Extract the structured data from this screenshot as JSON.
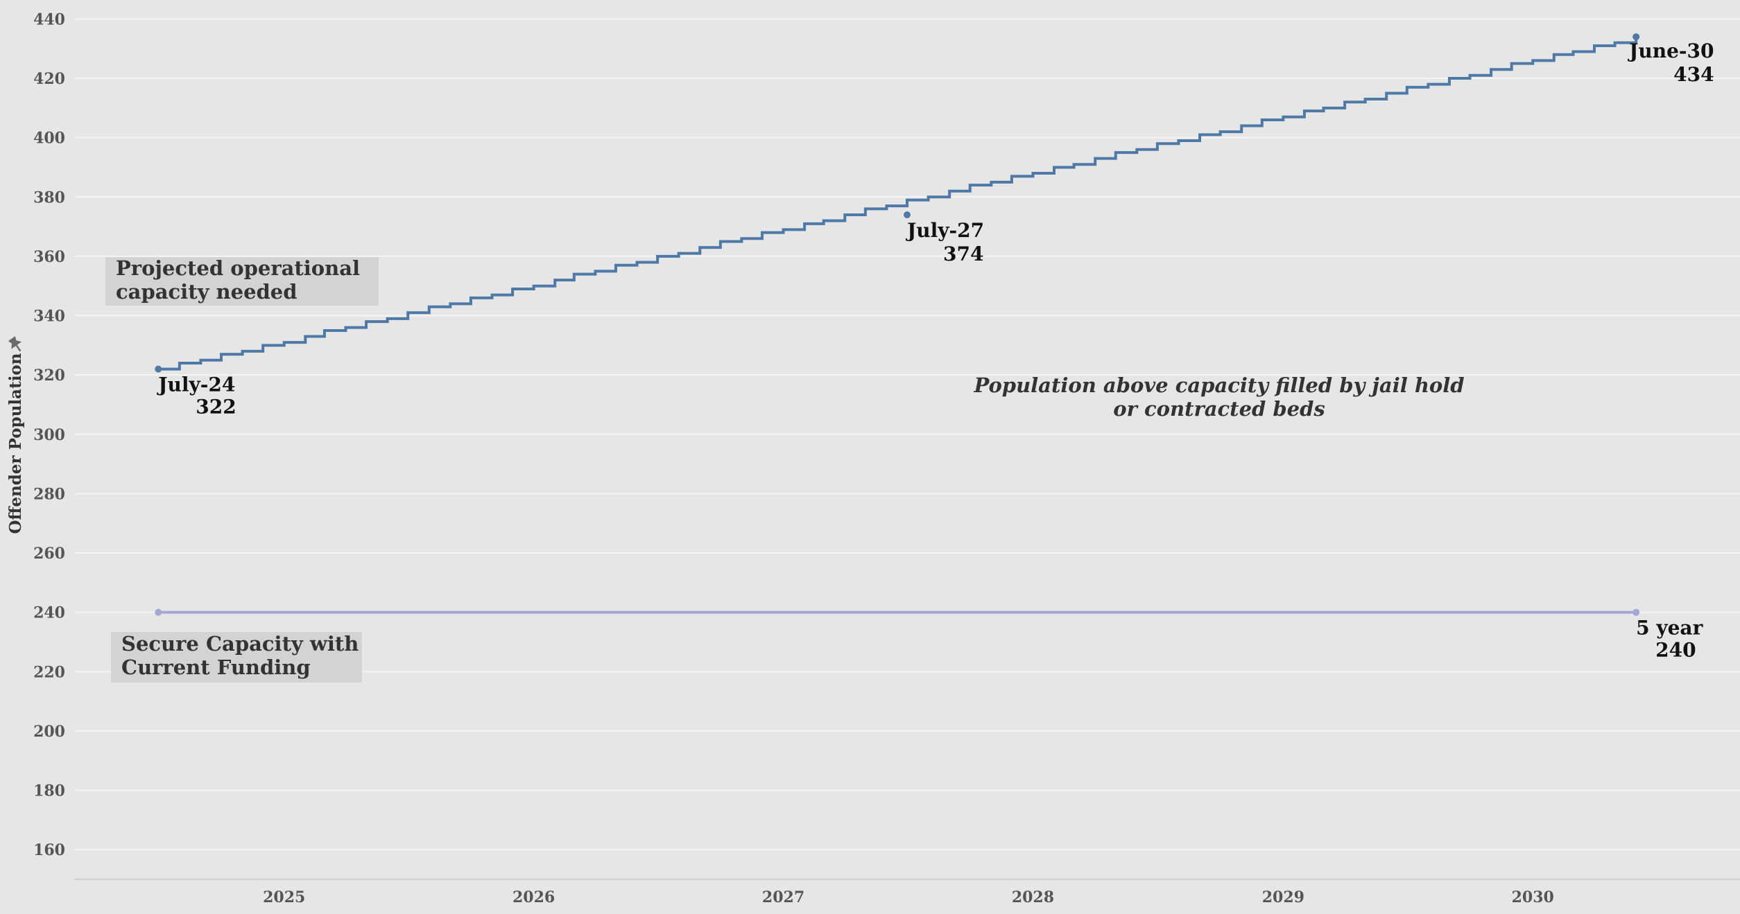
{
  "chart_data": {
    "type": "line",
    "xlabel": "",
    "ylabel": "Offender Population",
    "ylim": [
      150,
      445
    ],
    "y_ticks": [
      160,
      180,
      200,
      220,
      240,
      260,
      280,
      300,
      320,
      340,
      360,
      380,
      400,
      420,
      440
    ],
    "x_range": [
      "2024-03-01",
      "2030-10-31"
    ],
    "x_ticks": [
      {
        "date": "2025-01-01",
        "label": "2025"
      },
      {
        "date": "2026-01-01",
        "label": "2026"
      },
      {
        "date": "2027-01-01",
        "label": "2027"
      },
      {
        "date": "2028-01-01",
        "label": "2028"
      },
      {
        "date": "2029-01-01",
        "label": "2029"
      },
      {
        "date": "2030-01-01",
        "label": "2030"
      }
    ],
    "grid": true,
    "series": [
      {
        "name": "Projected operational capacity needed",
        "color": "#4e79a7",
        "style": "step",
        "start": {
          "date": "2024-07-01",
          "value": 322
        },
        "end": {
          "date": "2030-06-01",
          "value": 434
        },
        "points": [
          {
            "date": "2024-07-01",
            "value": 322
          },
          {
            "date": "2027-07-01",
            "value": 374
          },
          {
            "date": "2030-06-01",
            "value": 434
          }
        ]
      },
      {
        "name": "Secure Capacity with Current Funding",
        "color": "#a3a8d6",
        "style": "line",
        "points": [
          {
            "date": "2024-07-01",
            "value": 240
          },
          {
            "date": "2030-06-01",
            "value": 240
          }
        ]
      }
    ],
    "point_labels": [
      {
        "id": "july24",
        "date": "2024-07-01",
        "value": 322,
        "line1": "July-24",
        "line2": "322"
      },
      {
        "id": "july27",
        "date": "2027-07-01",
        "value": 374,
        "line1": "July-27",
        "line2": "374"
      },
      {
        "id": "june30",
        "date": "2030-06-01",
        "value": 434,
        "line1": "June-30",
        "line2": "434"
      },
      {
        "id": "fiveyear",
        "date": "2030-06-01",
        "value": 240,
        "line1": "5 year",
        "line2": "240"
      }
    ],
    "annotations": {
      "projected_box": [
        "Projected operational",
        "capacity needed"
      ],
      "secure_box": [
        "Secure Capacity with",
        "Current Funding"
      ],
      "note": [
        "Population above capacity filled by jail hold",
        "or contracted beds"
      ]
    },
    "icons": {
      "axis_sort": "pin-icon"
    }
  }
}
